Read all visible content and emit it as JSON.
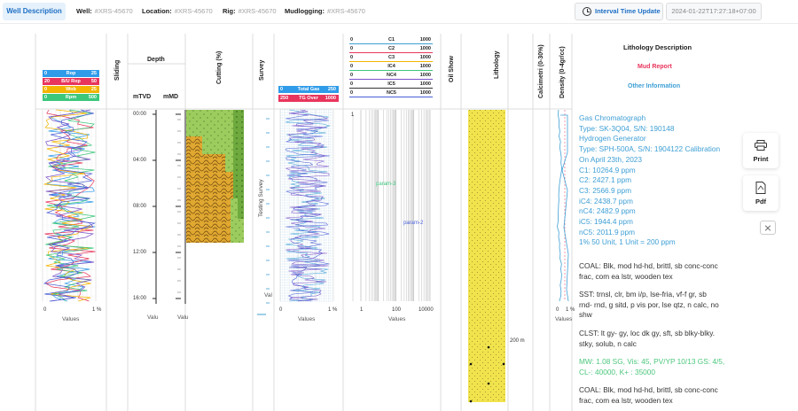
{
  "header": {
    "active_tab": "Well Description",
    "well_label": "Well:",
    "well_value": "#XRS-45670",
    "location_label": "Location:",
    "location_value": "#XRS-45670",
    "rig_label": "Rig:",
    "rig_value": "#XRS-45670",
    "mudlogging_label": "Mudlogging:",
    "mudlogging_value": "#XRS-45670",
    "interval_button": "Interval Time Update",
    "datetime": "2024-01-22T17:27:18+07:00"
  },
  "columns": {
    "sliding": "Sliding",
    "depth": "Depth",
    "mtvd": "mTVD",
    "mmd": "mMD",
    "cutting": "Cutting (%)",
    "survey": "Survey",
    "oil_show": "Oil Show",
    "lithology": "Lithology",
    "calcimetri": "Calcimetri (0-30%)",
    "density": "Density (0-4gr/cc)",
    "lithology_description": "Lithology Description",
    "mud_report": "Mud Report",
    "other_information": "Other Information"
  },
  "drilling_legend": [
    {
      "lo": "0",
      "name": "Rop",
      "hi": "25",
      "color": "#2f9be9"
    },
    {
      "lo": "20",
      "name": "B/U Rop",
      "hi": "50",
      "color": "#e8355c"
    },
    {
      "lo": "0",
      "name": "Wob",
      "hi": "25",
      "color": "#f4b400"
    },
    {
      "lo": "0",
      "name": "Rpm",
      "hi": "500",
      "color": "#3cc77b"
    }
  ],
  "gas_legend": [
    {
      "lo": "0",
      "name": "Total Gas",
      "hi": "250",
      "color": "#2f9be9"
    },
    {
      "lo": "250",
      "name": "TG Over",
      "hi": "1000",
      "color": "#e8355c"
    }
  ],
  "gc_legend": [
    {
      "lo": "0",
      "name": "C1",
      "hi": "1000",
      "color": "#3e9fd5"
    },
    {
      "lo": "0",
      "name": "C2",
      "hi": "1000",
      "color": "#e8355c"
    },
    {
      "lo": "0",
      "name": "C3",
      "hi": "1000",
      "color": "#f4b400"
    },
    {
      "lo": "0",
      "name": "IC4",
      "hi": "1000",
      "color": "#3cc77b"
    },
    {
      "lo": "0",
      "name": "NC4",
      "hi": "1000",
      "color": "#7b52c9"
    },
    {
      "lo": "0",
      "name": "IC5",
      "hi": "1000",
      "color": "#333333"
    },
    {
      "lo": "0",
      "name": "NC5",
      "hi": "1000",
      "color": "#4b5fd6"
    }
  ],
  "depth_ticks": [
    "00:00",
    "04:00",
    "08:00",
    "12:00",
    "16:00"
  ],
  "axes": {
    "drilling_x": [
      "0",
      "1 %"
    ],
    "drilling_title": "Values",
    "mtvd_title": "Valu",
    "mmd_title": "Valu",
    "survey_label": "Testing Survey",
    "survey_x_title": "Val",
    "gas_x": [
      "0",
      "1 %"
    ],
    "gas_title": "Values",
    "gc_x": [
      "1",
      "100",
      "10000"
    ],
    "gc_title": "Values",
    "calc_x": [
      "0",
      "1 %"
    ],
    "calc_title": "Values",
    "lith_depth": "200 m"
  },
  "annotations": {
    "param3": "param-3",
    "param2": "param-2"
  },
  "description": {
    "gas_chromatograph": [
      "Gas Chromatograph",
      "Type: SK-3Q04, S/N: 190148",
      "Hydrogen Generator",
      "Type: SPH-500A, S/N: 1904122 Calibration",
      "On April 23th, 2023",
      "C1: 10264.9 ppm",
      "C2: 2427.1 ppm",
      "C3: 2566.9 ppm",
      "iC4: 2438.7 ppm",
      "nC4: 2482.9 ppm",
      "iC5: 1944.4 ppm",
      "nC5: 2011.9 ppm",
      "1% 50 Unit, 1 Unit = 200 ppm"
    ],
    "coal1": [
      "COAL: Blk, mod hd-hd, brittl, sb conc-conc",
      "frac, com ea lstr, wooden tex"
    ],
    "sst": [
      "SST: trnsl, clr, bm i/p, lse-fria, vf-f gr, sb",
      "rnd- rnd, g sitd, p vis por, lse qtz, n calc, no",
      "shw"
    ],
    "clst": [
      "CLST: lt gy- gy, loc dk gy, sft, sb blky-blky.",
      "stky, solub, n calc"
    ],
    "mud": [
      "MW: 1.08 SG, Vis: 45, PV/YP 10/13 GS: 4/5,",
      "CL-: 40000, K+ : 35000"
    ],
    "coal2": [
      "COAL: Blk, mod hd-hd, brittl, sb conc-conc",
      "frac, com ea lstr, wooden tex"
    ]
  },
  "side": {
    "print": "Print",
    "pdf": "Pdf"
  }
}
